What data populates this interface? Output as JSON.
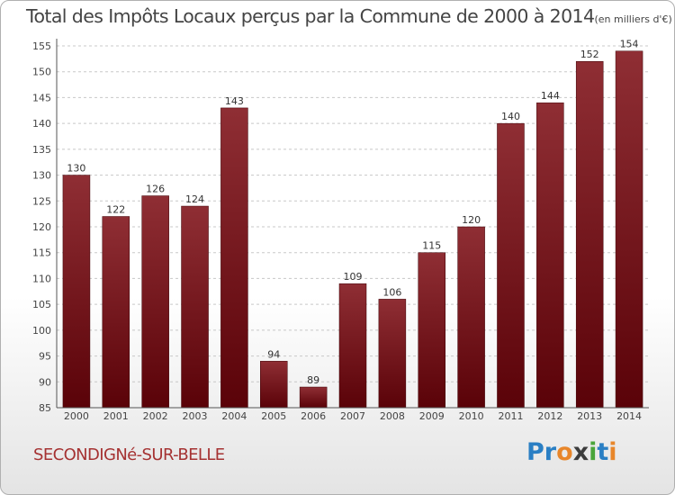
{
  "chart_data": {
    "type": "bar",
    "title": "Total des Impôts Locaux perçus par la Commune de 2000 à 2014",
    "unit_note": "(en milliers d'€)",
    "categories": [
      "2000",
      "2001",
      "2002",
      "2003",
      "2004",
      "2005",
      "2006",
      "2007",
      "2008",
      "2009",
      "2010",
      "2011",
      "2012",
      "2013",
      "2014"
    ],
    "values": [
      130,
      122,
      126,
      124,
      143,
      94,
      89,
      109,
      106,
      115,
      120,
      140,
      144,
      152,
      154
    ],
    "ylim": [
      85,
      155
    ],
    "yticks": [
      85,
      90,
      95,
      100,
      105,
      110,
      115,
      120,
      125,
      130,
      135,
      140,
      145,
      150,
      155
    ],
    "xlabel": "",
    "ylabel": "",
    "grid": true,
    "bar_color": "#6b0f14"
  },
  "footer": {
    "commune": "SECONDIGNé-SUR-BELLE",
    "logo_letters": [
      "P",
      "r",
      "o",
      "x",
      "i",
      "t",
      "i"
    ],
    "logo_colors": [
      "#2a7fc4",
      "#2a7fc4",
      "#e8862a",
      "#3c3c3c",
      "#4aa53a",
      "#2a7fc4",
      "#e8862a"
    ]
  }
}
